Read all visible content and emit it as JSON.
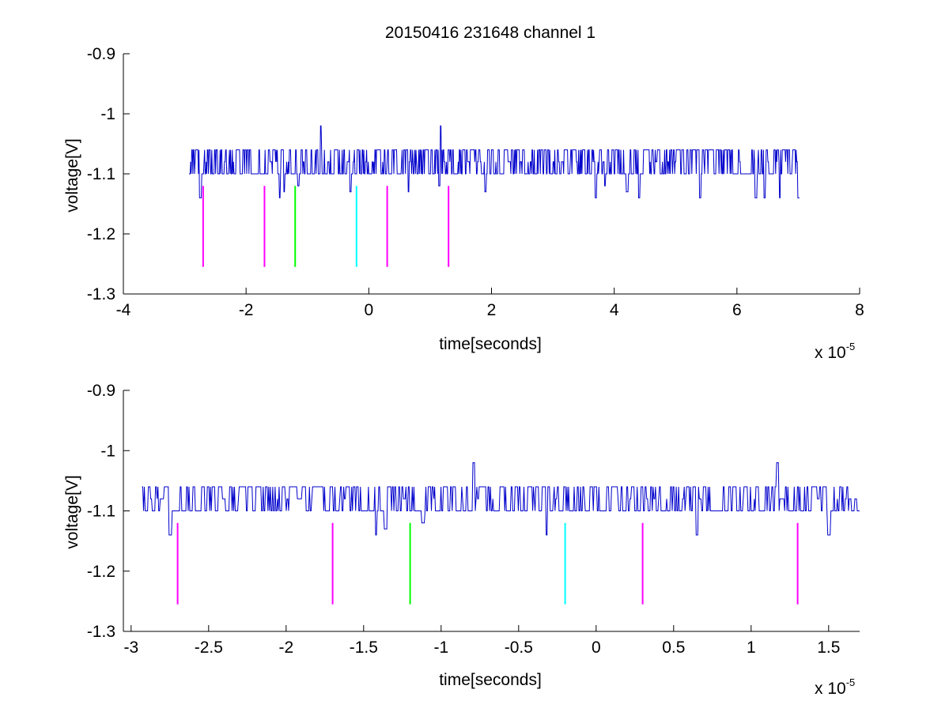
{
  "figure": {
    "title": "20150416 231648 channel 1"
  },
  "chart_data": [
    {
      "type": "line",
      "xlabel": "time[seconds]",
      "ylabel": "voltage[V]",
      "x_exponent_label": "x 10",
      "x_exponent": "-5",
      "x_scale": 1e-05,
      "xlim": [
        -4,
        8
      ],
      "ylim": [
        -1.3,
        -0.9
      ],
      "xticks": [
        -4,
        -2,
        0,
        2,
        4,
        6,
        8
      ],
      "xtick_labels": [
        "-4",
        "-2",
        "0",
        "2",
        "4",
        "6",
        "8"
      ],
      "yticks": [
        -1.3,
        -1.2,
        -1.1,
        -1.0,
        -0.9
      ],
      "ytick_labels": [
        "-1.3",
        "-1.2",
        "-1.1",
        "-1",
        "-0.9"
      ],
      "grid": false,
      "series": [
        {
          "color": "#0000cc",
          "x_range": [
            -2.93,
            7.02
          ],
          "levels": [
            -1.06,
            -1.08,
            -1.1
          ],
          "dips": [
            {
              "x": -2.75,
              "y": -1.14
            },
            {
              "x": -1.45,
              "y": -1.14
            },
            {
              "x": -1.38,
              "y": -1.13
            },
            {
              "x": -1.15,
              "y": -1.12
            },
            {
              "x": -0.3,
              "y": -1.13
            },
            {
              "x": 0.65,
              "y": -1.13
            },
            {
              "x": 1.15,
              "y": -1.12
            },
            {
              "x": 1.9,
              "y": -1.13
            },
            {
              "x": 3.7,
              "y": -1.14
            },
            {
              "x": 3.85,
              "y": -1.12
            },
            {
              "x": 4.2,
              "y": -1.13
            },
            {
              "x": 4.4,
              "y": -1.14
            },
            {
              "x": 5.4,
              "y": -1.14
            },
            {
              "x": 6.3,
              "y": -1.14
            },
            {
              "x": 6.45,
              "y": -1.14
            },
            {
              "x": 6.7,
              "y": -1.14
            },
            {
              "x": 7.0,
              "y": -1.14
            }
          ],
          "spikes": [
            {
              "x": -0.78,
              "y": -1.02
            },
            {
              "x": 1.17,
              "y": -1.02
            }
          ]
        }
      ],
      "markers": [
        {
          "x": -2.7,
          "y_top": -1.12,
          "y_bottom": -1.255,
          "color": "#ff00ff"
        },
        {
          "x": -1.7,
          "y_top": -1.12,
          "y_bottom": -1.255,
          "color": "#ff00ff"
        },
        {
          "x": -1.2,
          "y_top": -1.12,
          "y_bottom": -1.255,
          "color": "#00ff00"
        },
        {
          "x": -0.2,
          "y_top": -1.12,
          "y_bottom": -1.255,
          "color": "#00ffff"
        },
        {
          "x": 0.3,
          "y_top": -1.12,
          "y_bottom": -1.255,
          "color": "#ff00ff"
        },
        {
          "x": 1.3,
          "y_top": -1.12,
          "y_bottom": -1.255,
          "color": "#ff00ff"
        }
      ]
    },
    {
      "type": "line",
      "xlabel": "time[seconds]",
      "ylabel": "voltage[V]",
      "x_exponent_label": "x 10",
      "x_exponent": "-5",
      "x_scale": 1e-05,
      "xlim": [
        -3.05,
        1.7
      ],
      "ylim": [
        -1.3,
        -0.9
      ],
      "xticks": [
        -3,
        -2.5,
        -2,
        -1.5,
        -1,
        -0.5,
        0,
        0.5,
        1,
        1.5
      ],
      "xtick_labels": [
        "-3",
        "-2.5",
        "-2",
        "-1.5",
        "-1",
        "-0.5",
        "0",
        "0.5",
        "1",
        "1.5"
      ],
      "yticks": [
        -1.3,
        -1.2,
        -1.1,
        -1.0,
        -0.9
      ],
      "ytick_labels": [
        "-1.3",
        "-1.2",
        "-1.1",
        "-1",
        "-0.9"
      ],
      "grid": false,
      "series": [
        {
          "color": "#0000cc",
          "x_range": [
            -2.93,
            1.7
          ],
          "levels": [
            -1.06,
            -1.08,
            -1.1
          ],
          "dips": [
            {
              "x": -2.75,
              "y": -1.14
            },
            {
              "x": -1.42,
              "y": -1.14
            },
            {
              "x": -1.36,
              "y": -1.13
            },
            {
              "x": -1.12,
              "y": -1.12
            },
            {
              "x": -0.32,
              "y": -1.14
            },
            {
              "x": 0.65,
              "y": -1.14
            },
            {
              "x": 1.5,
              "y": -1.14
            }
          ],
          "spikes": [
            {
              "x": -0.79,
              "y": -1.02
            },
            {
              "x": 1.17,
              "y": -1.02
            }
          ]
        }
      ],
      "markers": [
        {
          "x": -2.7,
          "y_top": -1.12,
          "y_bottom": -1.255,
          "color": "#ff00ff"
        },
        {
          "x": -1.7,
          "y_top": -1.12,
          "y_bottom": -1.255,
          "color": "#ff00ff"
        },
        {
          "x": -1.2,
          "y_top": -1.12,
          "y_bottom": -1.255,
          "color": "#00ff00"
        },
        {
          "x": -0.2,
          "y_top": -1.12,
          "y_bottom": -1.255,
          "color": "#00ffff"
        },
        {
          "x": 0.3,
          "y_top": -1.12,
          "y_bottom": -1.255,
          "color": "#ff00ff"
        },
        {
          "x": 1.3,
          "y_top": -1.12,
          "y_bottom": -1.255,
          "color": "#ff00ff"
        }
      ]
    }
  ]
}
